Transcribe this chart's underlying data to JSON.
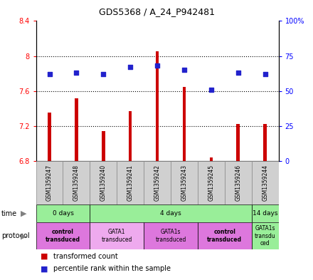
{
  "title": "GDS5368 / A_24_P942481",
  "samples": [
    "GSM1359247",
    "GSM1359248",
    "GSM1359240",
    "GSM1359241",
    "GSM1359242",
    "GSM1359243",
    "GSM1359245",
    "GSM1359246",
    "GSM1359244"
  ],
  "transformed_count": [
    7.35,
    7.52,
    7.14,
    7.37,
    8.05,
    7.65,
    6.84,
    7.22,
    7.22
  ],
  "percentile_rank": [
    62,
    63,
    62,
    67,
    68,
    65,
    51,
    63,
    62
  ],
  "ylim": [
    6.8,
    8.4
  ],
  "y2lim": [
    0,
    100
  ],
  "yticks": [
    6.8,
    7.2,
    7.6,
    8.0,
    8.4
  ],
  "y2ticks": [
    0,
    25,
    50,
    75,
    100
  ],
  "bar_color": "#cc0000",
  "dot_color": "#2222cc",
  "bar_bottom": 6.8,
  "time_data": [
    {
      "label": "0 days",
      "start": 0,
      "end": 2,
      "color": "#99ee99"
    },
    {
      "label": "4 days",
      "start": 2,
      "end": 8,
      "color": "#99ee99"
    },
    {
      "label": "14 days",
      "start": 8,
      "end": 9,
      "color": "#99ee99"
    }
  ],
  "protocol_data": [
    {
      "label": "control\ntransduced",
      "start": 0,
      "end": 2,
      "color": "#dd77dd",
      "bold": true
    },
    {
      "label": "GATA1\ntransduced",
      "start": 2,
      "end": 4,
      "color": "#eeaaee",
      "bold": false
    },
    {
      "label": "GATA1s\ntransduced",
      "start": 4,
      "end": 6,
      "color": "#dd77dd",
      "bold": false
    },
    {
      "label": "control\ntransduced",
      "start": 6,
      "end": 8,
      "color": "#dd77dd",
      "bold": true
    },
    {
      "label": "GATA1s\ntransdu\nced",
      "start": 8,
      "end": 9,
      "color": "#99ee99",
      "bold": false
    }
  ]
}
